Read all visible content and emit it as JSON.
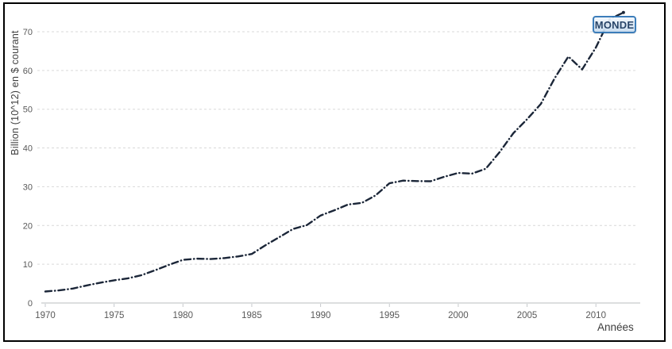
{
  "chart_data": {
    "type": "line",
    "title": "",
    "xlabel": "Années",
    "ylabel": "Billion (10^12) en $ courant",
    "series_label": "MONDE",
    "x": [
      1970,
      1971,
      1972,
      1973,
      1974,
      1975,
      1976,
      1977,
      1978,
      1979,
      1980,
      1981,
      1982,
      1983,
      1984,
      1985,
      1986,
      1987,
      1988,
      1989,
      1990,
      1991,
      1992,
      1993,
      1994,
      1995,
      1996,
      1997,
      1998,
      1999,
      2000,
      2001,
      2002,
      2003,
      2004,
      2005,
      2006,
      2007,
      2008,
      2009,
      2010,
      2011,
      2012
    ],
    "values": [
      2.96,
      3.25,
      3.73,
      4.53,
      5.24,
      5.86,
      6.36,
      7.18,
      8.48,
      9.87,
      11.13,
      11.44,
      11.34,
      11.59,
      12.02,
      12.65,
      14.93,
      16.98,
      19.1,
      20.1,
      22.58,
      23.93,
      25.41,
      25.83,
      27.77,
      30.88,
      31.57,
      31.46,
      31.41,
      32.58,
      33.57,
      33.39,
      34.65,
      38.9,
      43.8,
      47.4,
      51.37,
      57.97,
      63.6,
      60.28,
      65.95,
      73.28,
      74.95
    ],
    "xticks": [
      1970,
      1975,
      1980,
      1985,
      1990,
      1995,
      2000,
      2005,
      2010
    ],
    "yticks": [
      0,
      10,
      20,
      30,
      40,
      50,
      60,
      70
    ],
    "ylim": [
      0,
      75.5
    ],
    "xlim": [
      1970,
      2012
    ],
    "grid": "horizontal-dashed",
    "line_style": "dash-dot",
    "legend_position": "top-right-callout"
  },
  "colors": {
    "line": "#1b2638",
    "gridline": "#d9d9d9",
    "axis_line": "#c6c9cc",
    "tick_label": "#595959",
    "axis_title": "#3f3f3f",
    "callout_border": "#2e74b5",
    "callout_fill": "#d9e7f5",
    "callout_text": "#17365d",
    "frame": "#000000"
  }
}
